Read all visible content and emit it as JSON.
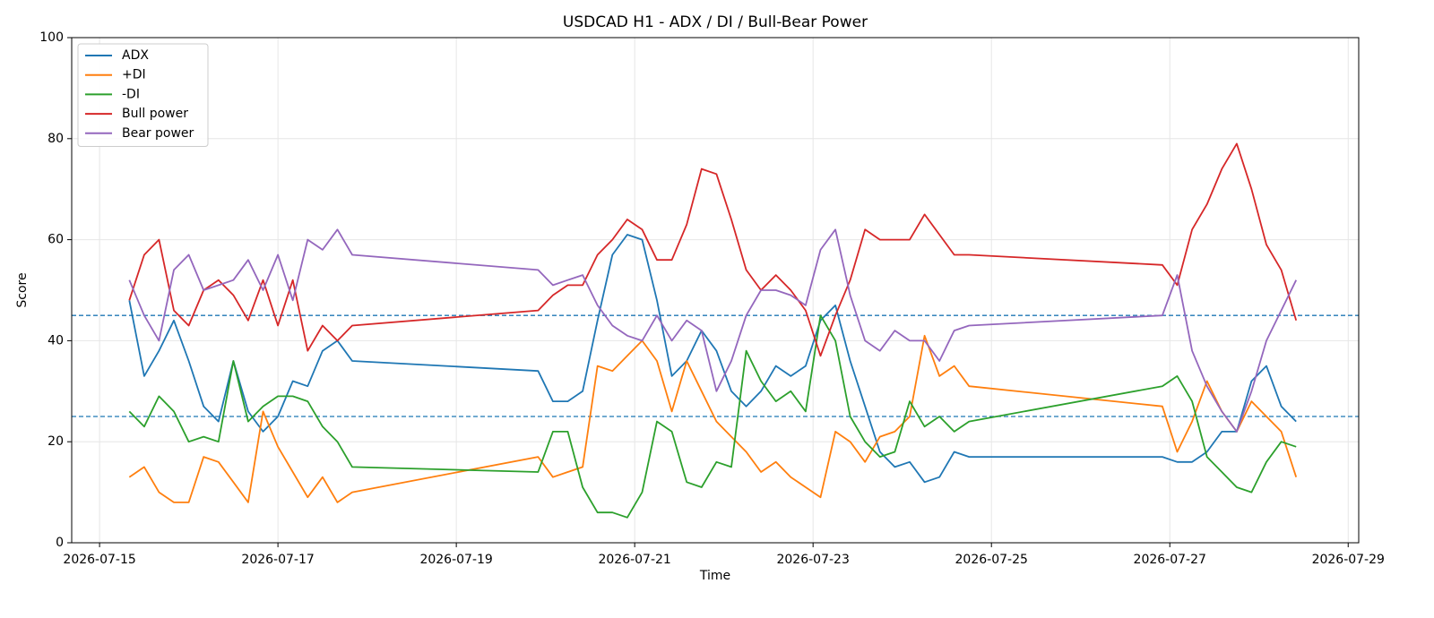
{
  "chart_data": {
    "type": "line",
    "title": "USDCAD H1 - ADX / DI / Bull-Bear Power",
    "x_label": "Time",
    "y_label": "Score",
    "x": [
      "2026-07-15T08:00",
      "2026-07-15T12:00",
      "2026-07-15T16:00",
      "2026-07-15T20:00",
      "2026-07-16T00:00",
      "2026-07-16T04:00",
      "2026-07-16T08:00",
      "2026-07-16T12:00",
      "2026-07-16T16:00",
      "2026-07-16T20:00",
      "2026-07-17T00:00",
      "2026-07-17T04:00",
      "2026-07-17T08:00",
      "2026-07-17T12:00",
      "2026-07-17T16:00",
      "2026-07-17T20:00",
      "2026-07-19T22:00",
      "2026-07-20T02:00",
      "2026-07-20T06:00",
      "2026-07-20T10:00",
      "2026-07-20T14:00",
      "2026-07-20T18:00",
      "2026-07-20T22:00",
      "2026-07-21T02:00",
      "2026-07-21T06:00",
      "2026-07-21T10:00",
      "2026-07-21T14:00",
      "2026-07-21T18:00",
      "2026-07-21T22:00",
      "2026-07-22T02:00",
      "2026-07-22T06:00",
      "2026-07-22T10:00",
      "2026-07-22T14:00",
      "2026-07-22T18:00",
      "2026-07-22T22:00",
      "2026-07-23T02:00",
      "2026-07-23T06:00",
      "2026-07-23T10:00",
      "2026-07-23T14:00",
      "2026-07-23T18:00",
      "2026-07-23T22:00",
      "2026-07-24T02:00",
      "2026-07-24T06:00",
      "2026-07-24T10:00",
      "2026-07-24T14:00",
      "2026-07-24T18:00",
      "2026-07-26T22:00",
      "2026-07-27T02:00",
      "2026-07-27T06:00",
      "2026-07-27T10:00",
      "2026-07-27T14:00",
      "2026-07-27T18:00",
      "2026-07-27T22:00",
      "2026-07-28T02:00",
      "2026-07-28T06:00",
      "2026-07-28T10:00"
    ],
    "series": [
      {
        "name": "ADX",
        "color": "#1f77b4",
        "values": [
          48,
          33,
          38,
          44,
          36,
          27,
          24,
          36,
          26,
          22,
          25,
          32,
          31,
          38,
          40,
          36,
          34,
          28,
          28,
          30,
          44,
          57,
          61,
          60,
          48,
          33,
          36,
          42,
          38,
          30,
          27,
          30,
          35,
          33,
          35,
          44,
          47,
          36,
          27,
          18,
          15,
          16,
          12,
          13,
          18,
          17,
          17,
          16,
          16,
          18,
          22,
          22,
          32,
          35,
          27,
          24
        ]
      },
      {
        "name": "+DI",
        "color": "#ff7f0e",
        "values": [
          13,
          15,
          10,
          8,
          8,
          17,
          16,
          12,
          8,
          26,
          19,
          14,
          9,
          13,
          8,
          10,
          17,
          13,
          14,
          15,
          35,
          34,
          37,
          40,
          36,
          26,
          36,
          30,
          24,
          21,
          18,
          14,
          16,
          13,
          11,
          9,
          22,
          20,
          16,
          21,
          22,
          25,
          41,
          33,
          35,
          31,
          27,
          18,
          24,
          32,
          26,
          22,
          28,
          25,
          22,
          13
        ]
      },
      {
        "name": "-DI",
        "color": "#2ca02c",
        "values": [
          26,
          23,
          29,
          26,
          20,
          21,
          20,
          36,
          24,
          27,
          29,
          29,
          28,
          23,
          20,
          15,
          14,
          22,
          22,
          11,
          6,
          6,
          5,
          10,
          24,
          22,
          12,
          11,
          16,
          15,
          38,
          32,
          28,
          30,
          26,
          45,
          40,
          25,
          20,
          17,
          18,
          28,
          23,
          25,
          22,
          24,
          31,
          33,
          28,
          17,
          14,
          11,
          10,
          16,
          20,
          19
        ]
      },
      {
        "name": "Bull power",
        "color": "#d62728",
        "values": [
          48,
          57,
          60,
          46,
          43,
          50,
          52,
          49,
          44,
          52,
          43,
          52,
          38,
          43,
          40,
          43,
          46,
          49,
          51,
          51,
          57,
          60,
          64,
          62,
          56,
          56,
          63,
          74,
          73,
          64,
          54,
          50,
          53,
          50,
          46,
          37,
          45,
          52,
          62,
          60,
          60,
          60,
          65,
          61,
          57,
          57,
          55,
          51,
          62,
          67,
          74,
          79,
          70,
          59,
          54,
          44
        ]
      },
      {
        "name": "Bear power",
        "color": "#9467bd",
        "values": [
          52,
          45,
          40,
          54,
          57,
          50,
          51,
          52,
          56,
          50,
          57,
          48,
          60,
          58,
          62,
          57,
          54,
          51,
          52,
          53,
          47,
          43,
          41,
          40,
          45,
          40,
          44,
          42,
          30,
          36,
          45,
          50,
          50,
          49,
          47,
          58,
          62,
          49,
          40,
          38,
          42,
          40,
          40,
          36,
          42,
          43,
          45,
          53,
          38,
          31,
          26,
          22,
          30,
          40,
          46,
          52
        ]
      }
    ],
    "reference_lines": [
      45,
      25
    ],
    "reference_color": "#1f77b4",
    "xlim": [
      "2026-07-14T16:30",
      "2026-07-29T02:50"
    ],
    "xticks": [
      "2026-07-15",
      "2026-07-17",
      "2026-07-19",
      "2026-07-21",
      "2026-07-23",
      "2026-07-25",
      "2026-07-27",
      "2026-07-29"
    ],
    "ylim": [
      0,
      100
    ],
    "yticks": [
      0,
      20,
      40,
      60,
      80,
      100
    ],
    "grid": true,
    "legend": "upper left"
  }
}
